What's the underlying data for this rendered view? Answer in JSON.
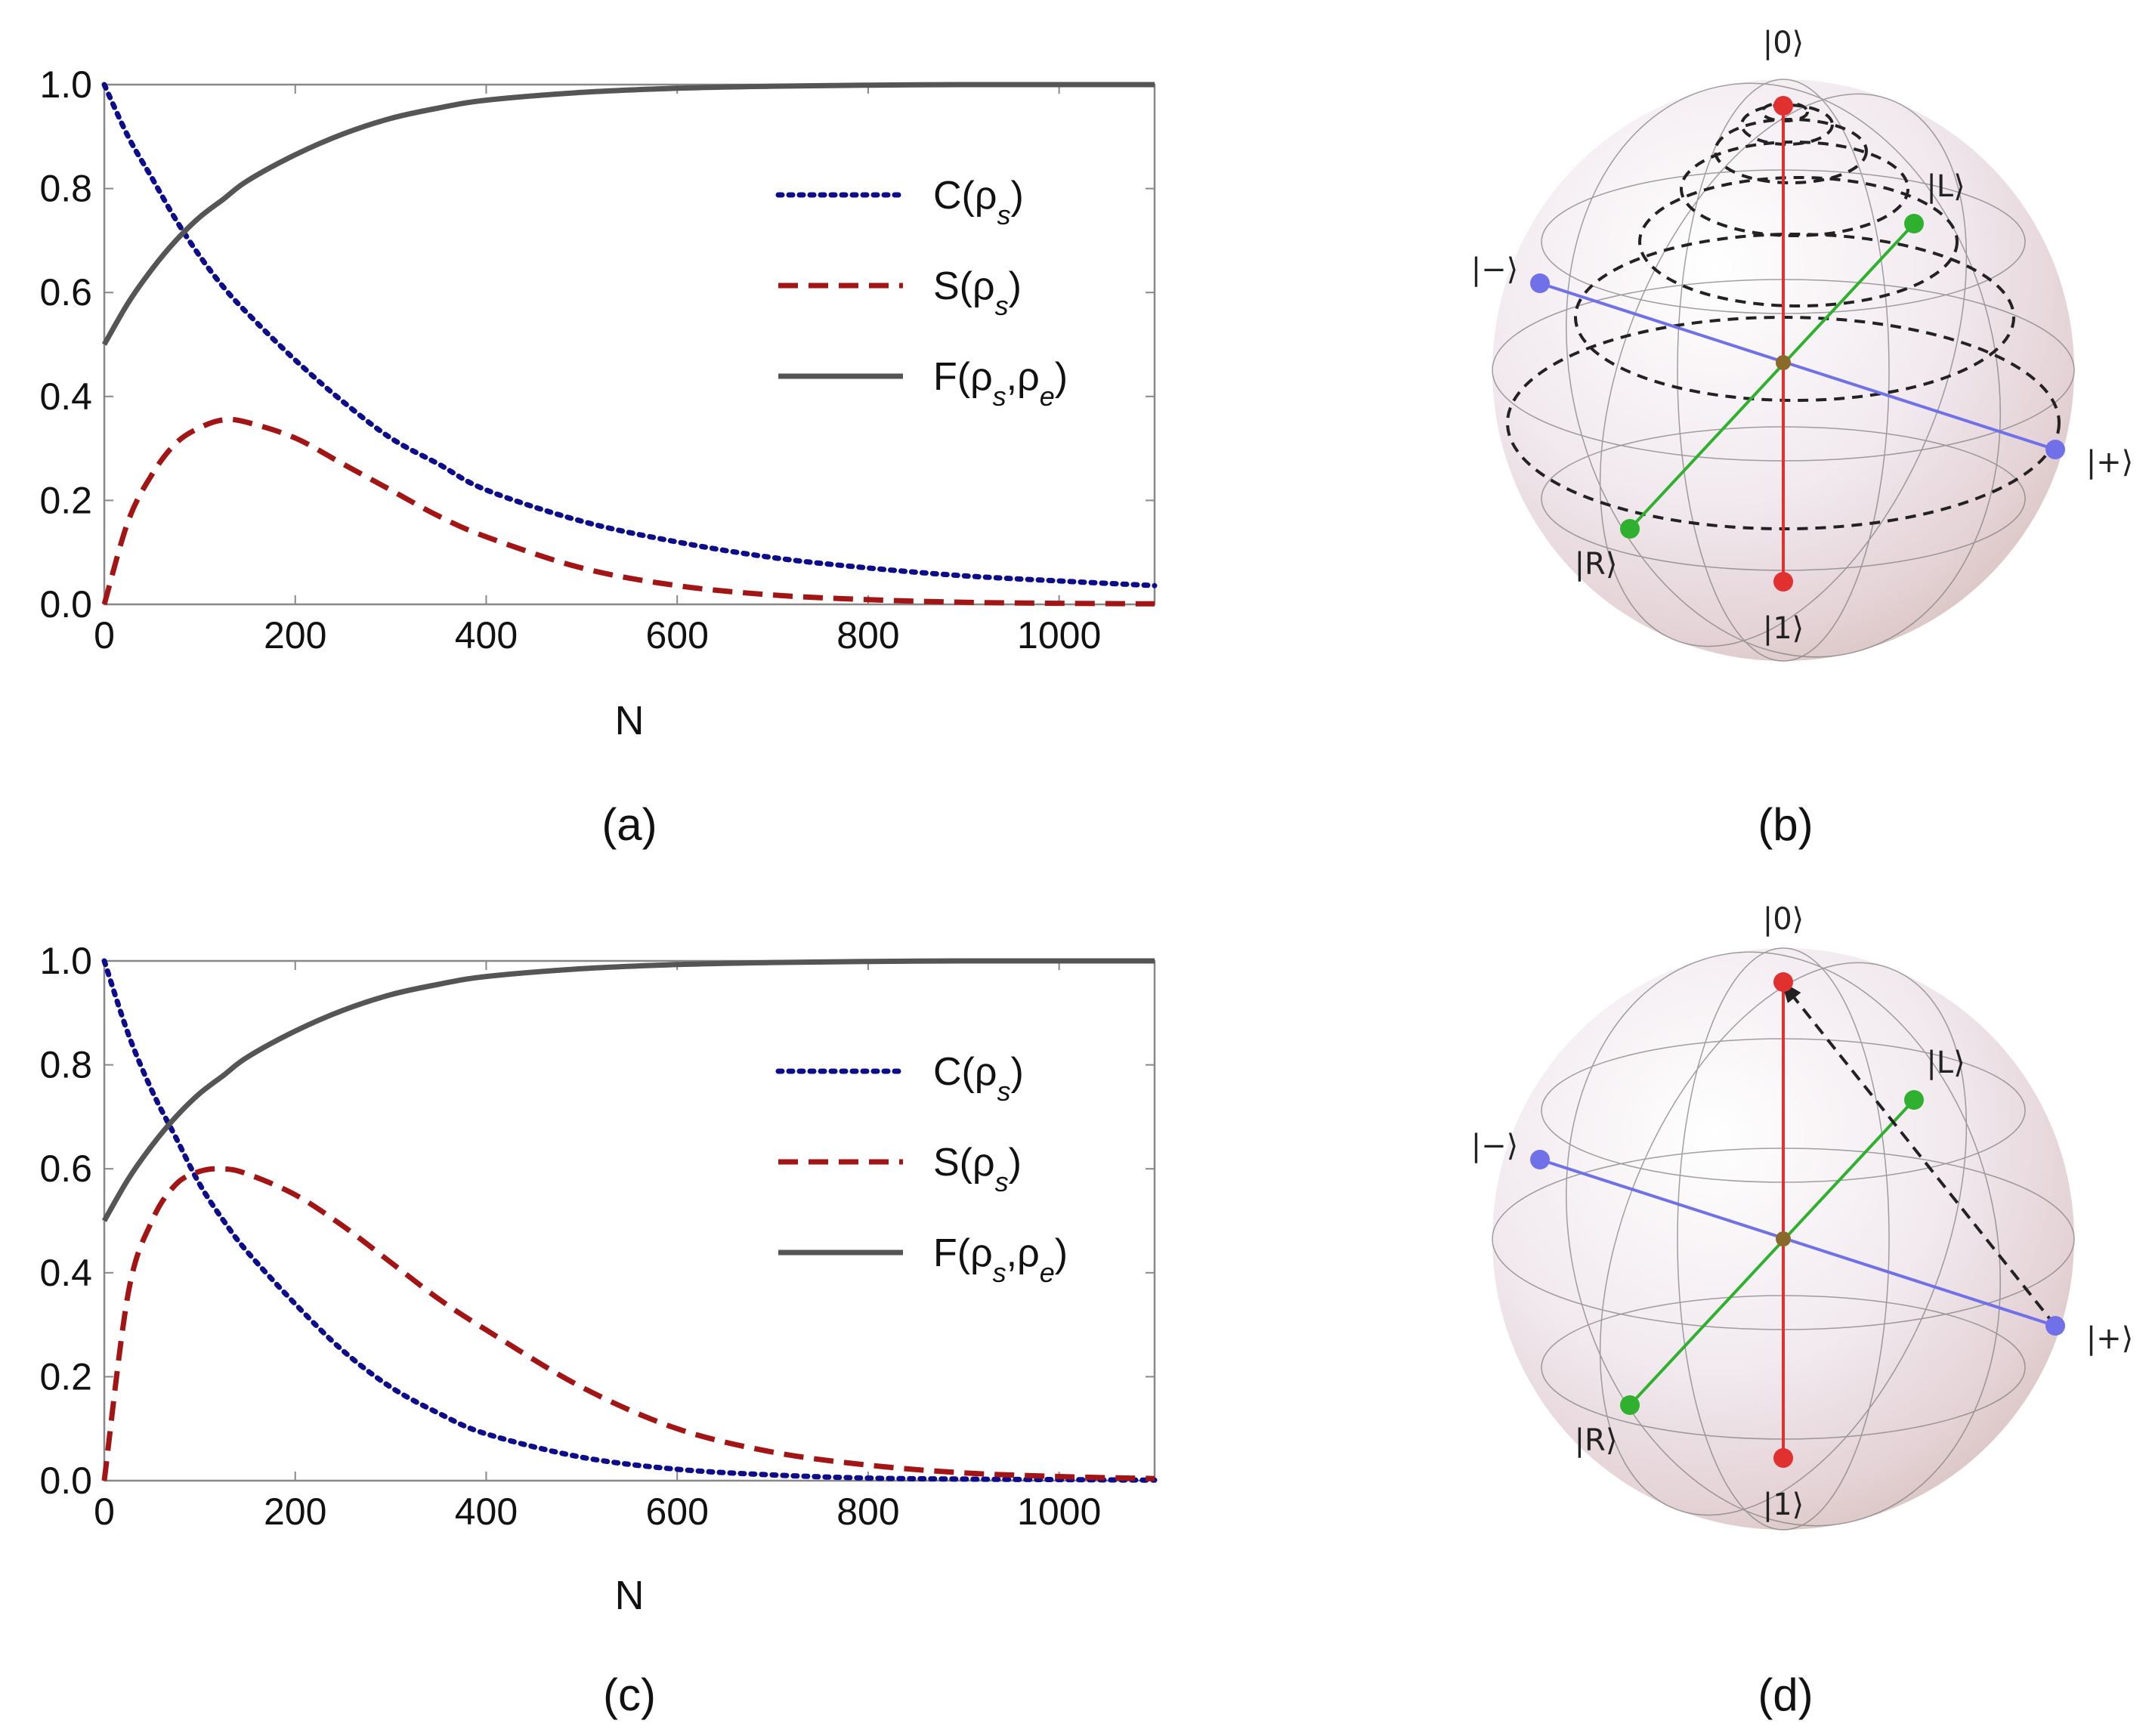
{
  "chart_data": [
    {
      "type": "line",
      "panel": "(a)",
      "caption": "(a)",
      "xlabel": "N",
      "ylabel": "",
      "xlim": [
        0,
        1100
      ],
      "ylim": [
        0,
        1.0
      ],
      "xticks": [
        "0",
        "200",
        "400",
        "600",
        "800",
        "1000"
      ],
      "yticks": [
        "0.0",
        "0.2",
        "0.4",
        "0.6",
        "0.8",
        "1.0"
      ],
      "x": [
        0,
        25,
        50,
        75,
        100,
        125,
        150,
        200,
        250,
        300,
        350,
        400,
        500,
        600,
        700,
        800,
        900,
        1000,
        1100
      ],
      "series": [
        {
          "name": "C(ρs)",
          "label_main": "C(ρ",
          "label_sub": "s",
          "label_end": ")",
          "style": "dotted",
          "color": "#0d0d8c",
          "values": [
            1.0,
            0.9,
            0.82,
            0.74,
            0.67,
            0.61,
            0.56,
            0.47,
            0.39,
            0.32,
            0.27,
            0.22,
            0.16,
            0.12,
            0.09,
            0.07,
            0.055,
            0.045,
            0.036
          ]
        },
        {
          "name": "S(ρs)",
          "label_main": "S(ρ",
          "label_sub": "s",
          "label_end": ")",
          "style": "dashed",
          "color": "#a31515",
          "values": [
            0.0,
            0.16,
            0.25,
            0.31,
            0.34,
            0.355,
            0.35,
            0.32,
            0.27,
            0.22,
            0.17,
            0.13,
            0.07,
            0.036,
            0.018,
            0.009,
            0.004,
            0.002,
            0.001
          ]
        },
        {
          "name": "F(ρs,ρe)",
          "label_main": "F(ρ",
          "label_sub": "s",
          "label_mid": ",ρ",
          "label_sub2": "e",
          "label_end": ")",
          "style": "solid",
          "color": "#555555",
          "values": [
            0.5,
            0.58,
            0.645,
            0.7,
            0.745,
            0.78,
            0.815,
            0.865,
            0.905,
            0.935,
            0.955,
            0.97,
            0.985,
            0.993,
            0.997,
            0.999,
            1.0,
            1.0,
            1.0
          ]
        }
      ]
    },
    {
      "type": "line",
      "panel": "(c)",
      "caption": "(c)",
      "xlabel": "N",
      "ylabel": "",
      "xlim": [
        0,
        1100
      ],
      "ylim": [
        0,
        1.0
      ],
      "xticks": [
        "0",
        "200",
        "400",
        "600",
        "800",
        "1000"
      ],
      "yticks": [
        "0.0",
        "0.2",
        "0.4",
        "0.6",
        "0.8",
        "1.0"
      ],
      "x": [
        0,
        25,
        50,
        75,
        100,
        125,
        150,
        200,
        250,
        300,
        350,
        400,
        500,
        600,
        700,
        800,
        900,
        1000,
        1100
      ],
      "series": [
        {
          "name": "C(ρs)",
          "label_main": "C(ρ",
          "label_sub": "s",
          "label_end": ")",
          "style": "dotted",
          "color": "#0d0d8c",
          "values": [
            1.0,
            0.86,
            0.75,
            0.66,
            0.57,
            0.5,
            0.44,
            0.34,
            0.25,
            0.18,
            0.13,
            0.09,
            0.045,
            0.022,
            0.011,
            0.005,
            0.003,
            0.002,
            0.001
          ]
        },
        {
          "name": "S(ρs)",
          "label_main": "S(ρ",
          "label_sub": "s",
          "label_end": ")",
          "style": "dashed",
          "color": "#a31515",
          "values": [
            0.0,
            0.36,
            0.5,
            0.57,
            0.595,
            0.6,
            0.59,
            0.55,
            0.49,
            0.42,
            0.35,
            0.29,
            0.18,
            0.1,
            0.055,
            0.03,
            0.015,
            0.008,
            0.004
          ]
        },
        {
          "name": "F(ρs,ρe)",
          "label_main": "F(ρ",
          "label_sub": "s",
          "label_mid": ",ρ",
          "label_sub2": "e",
          "label_end": ")",
          "style": "solid",
          "color": "#555555",
          "values": [
            0.5,
            0.58,
            0.645,
            0.7,
            0.745,
            0.78,
            0.815,
            0.865,
            0.905,
            0.935,
            0.955,
            0.97,
            0.985,
            0.993,
            0.997,
            0.999,
            1.0,
            1.0,
            1.0
          ]
        }
      ]
    }
  ],
  "bloch_b": {
    "caption": "(b)",
    "kets": {
      "zero": "|0⟩",
      "one": "|1⟩",
      "plus": "|+⟩",
      "minus": "|−⟩",
      "L": "|L⟩",
      "R": "|R⟩"
    },
    "colors": {
      "z_axis": "#e03030",
      "x_axis": "#7070e8",
      "y_axis": "#2fb02f",
      "trajectory": "#222222"
    },
    "trajectory": "spiral from |+⟩ toward |0⟩"
  },
  "bloch_d": {
    "caption": "(d)",
    "kets": {
      "zero": "|0⟩",
      "one": "|1⟩",
      "plus": "|+⟩",
      "minus": "|−⟩",
      "L": "|L⟩",
      "R": "|R⟩"
    },
    "colors": {
      "z_axis": "#e03030",
      "x_axis": "#7070e8",
      "y_axis": "#2fb02f",
      "trajectory": "#222222"
    },
    "trajectory": "straight path from |+⟩ toward |0⟩"
  }
}
